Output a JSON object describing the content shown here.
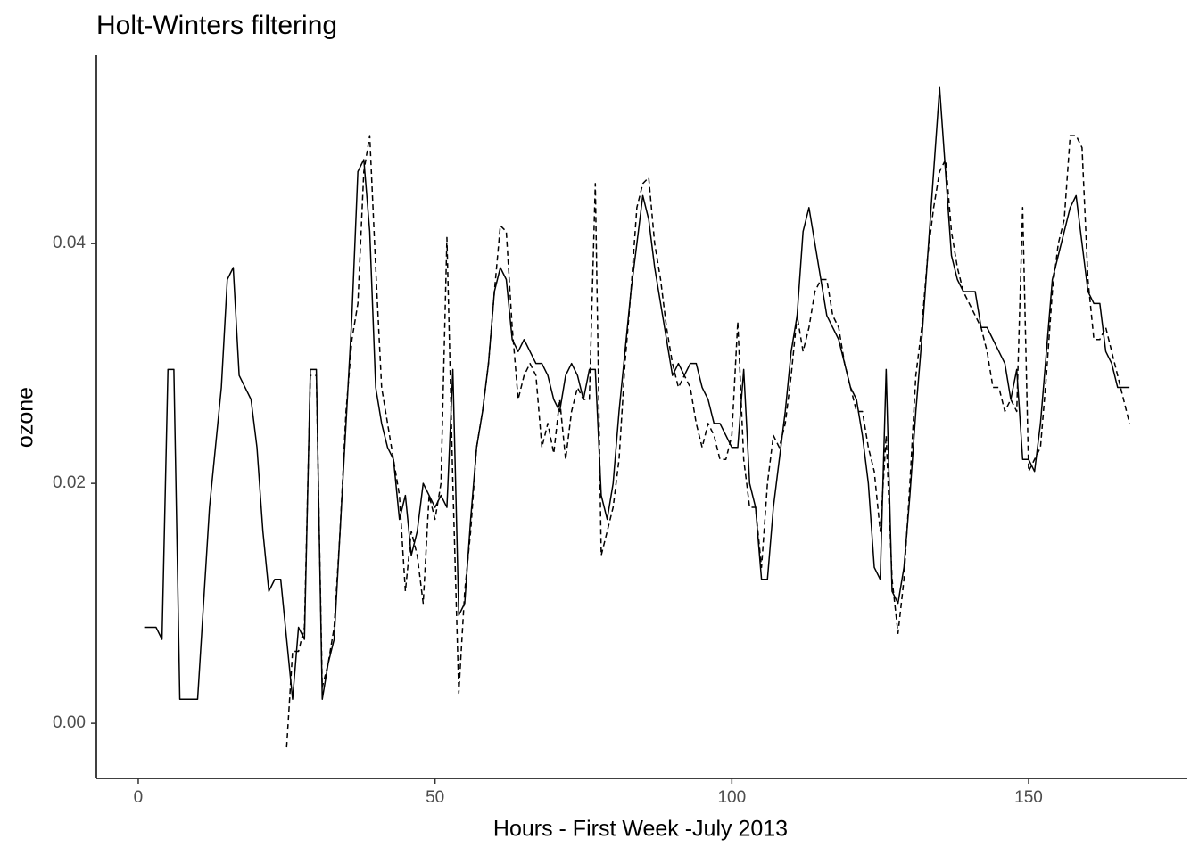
{
  "chart_data": {
    "type": "line",
    "title": "Holt-Winters filtering",
    "x_label": "Hours - First Week -July 2013",
    "y_label": "ozone",
    "x": [
      1,
      2,
      3,
      4,
      5,
      6,
      7,
      8,
      9,
      10,
      11,
      12,
      13,
      14,
      15,
      16,
      17,
      18,
      19,
      20,
      21,
      22,
      23,
      24,
      25,
      26,
      27,
      28,
      29,
      30,
      31,
      32,
      33,
      34,
      35,
      36,
      37,
      38,
      39,
      40,
      41,
      42,
      43,
      44,
      45,
      46,
      47,
      48,
      49,
      50,
      51,
      52,
      53,
      54,
      55,
      56,
      57,
      58,
      59,
      60,
      61,
      62,
      63,
      64,
      65,
      66,
      67,
      68,
      69,
      70,
      71,
      72,
      73,
      74,
      75,
      76,
      77,
      78,
      79,
      80,
      81,
      82,
      83,
      84,
      85,
      86,
      87,
      88,
      89,
      90,
      91,
      92,
      93,
      94,
      95,
      96,
      97,
      98,
      99,
      100,
      101,
      102,
      103,
      104,
      105,
      106,
      107,
      108,
      109,
      110,
      111,
      112,
      113,
      114,
      115,
      116,
      117,
      118,
      119,
      120,
      121,
      122,
      123,
      124,
      125,
      126,
      127,
      128,
      129,
      130,
      131,
      132,
      133,
      134,
      135,
      136,
      137,
      138,
      139,
      140,
      141,
      142,
      143,
      144,
      145,
      146,
      147,
      148,
      149,
      150,
      151,
      152,
      153,
      154,
      155,
      156,
      157,
      158,
      159,
      160,
      161,
      162,
      163,
      164,
      165,
      166,
      167
    ],
    "series": [
      {
        "color": "#000000",
        "linestyle": "solid",
        "values": [
          0.008,
          0.008,
          0.008,
          0.007,
          0.0295,
          0.0295,
          0.002,
          0.002,
          0.002,
          0.002,
          0.01,
          0.018,
          0.023,
          0.028,
          0.037,
          0.038,
          0.029,
          0.028,
          0.027,
          0.023,
          0.016,
          0.011,
          0.012,
          0.012,
          0.007,
          0.002,
          0.008,
          0.007,
          0.0295,
          0.0295,
          0.002,
          0.005,
          0.007,
          0.016,
          0.025,
          0.034,
          0.046,
          0.047,
          0.041,
          0.028,
          0.025,
          0.023,
          0.022,
          0.017,
          0.019,
          0.014,
          0.016,
          0.02,
          0.019,
          0.018,
          0.019,
          0.018,
          0.0295,
          0.009,
          0.01,
          0.017,
          0.023,
          0.026,
          0.03,
          0.036,
          0.038,
          0.037,
          0.032,
          0.031,
          0.032,
          0.031,
          0.03,
          0.03,
          0.029,
          0.027,
          0.026,
          0.029,
          0.03,
          0.029,
          0.027,
          0.0295,
          0.0295,
          0.019,
          0.017,
          0.02,
          0.026,
          0.031,
          0.036,
          0.04,
          0.044,
          0.042,
          0.038,
          0.035,
          0.032,
          0.029,
          0.03,
          0.029,
          0.03,
          0.03,
          0.028,
          0.027,
          0.025,
          0.025,
          0.024,
          0.023,
          0.023,
          0.0295,
          0.02,
          0.018,
          0.012,
          0.012,
          0.018,
          0.022,
          0.026,
          0.031,
          0.034,
          0.041,
          0.043,
          0.04,
          0.037,
          0.034,
          0.033,
          0.032,
          0.03,
          0.028,
          0.027,
          0.024,
          0.02,
          0.013,
          0.012,
          0.0295,
          0.011,
          0.01,
          0.013,
          0.019,
          0.026,
          0.032,
          0.039,
          0.046,
          0.053,
          0.046,
          0.039,
          0.037,
          0.036,
          0.036,
          0.036,
          0.033,
          0.033,
          0.032,
          0.031,
          0.03,
          0.027,
          0.0295,
          0.022,
          0.022,
          0.021,
          0.025,
          0.031,
          0.037,
          0.039,
          0.041,
          0.043,
          0.044,
          0.04,
          0.036,
          0.035,
          0.035,
          0.031,
          0.03,
          0.028,
          0.028,
          0.028
        ]
      },
      {
        "color": "#000000",
        "linestyle": "dashed",
        "values": [
          null,
          null,
          null,
          null,
          null,
          null,
          null,
          null,
          null,
          null,
          null,
          null,
          null,
          null,
          null,
          null,
          null,
          null,
          null,
          null,
          null,
          null,
          null,
          null,
          -0.002,
          0.006,
          0.006,
          0.008,
          0.029,
          0.029,
          0.003,
          0.005,
          0.008,
          0.016,
          0.026,
          0.032,
          0.035,
          0.046,
          0.049,
          0.038,
          0.028,
          0.025,
          0.022,
          0.019,
          0.011,
          0.016,
          0.014,
          0.01,
          0.019,
          0.017,
          0.02,
          0.0405,
          0.02,
          0.0025,
          0.011,
          0.016,
          0.023,
          0.026,
          0.03,
          0.036,
          0.0415,
          0.041,
          0.033,
          0.027,
          0.029,
          0.03,
          0.029,
          0.023,
          0.025,
          0.0225,
          0.027,
          0.022,
          0.026,
          0.028,
          0.027,
          0.027,
          0.045,
          0.014,
          0.016,
          0.018,
          0.022,
          0.03,
          0.036,
          0.043,
          0.045,
          0.0455,
          0.04,
          0.037,
          0.033,
          0.03,
          0.028,
          0.029,
          0.028,
          0.025,
          0.023,
          0.025,
          0.024,
          0.022,
          0.022,
          0.024,
          0.0335,
          0.022,
          0.018,
          0.018,
          0.013,
          0.02,
          0.024,
          0.023,
          0.025,
          0.029,
          0.034,
          0.031,
          0.033,
          0.036,
          0.037,
          0.037,
          0.034,
          0.033,
          0.03,
          0.028,
          0.026,
          0.026,
          0.023,
          0.021,
          0.016,
          0.024,
          0.012,
          0.0075,
          0.012,
          0.02,
          0.029,
          0.033,
          0.039,
          0.043,
          0.046,
          0.047,
          0.041,
          0.038,
          0.036,
          0.035,
          0.034,
          0.033,
          0.031,
          0.028,
          0.028,
          0.026,
          0.027,
          0.026,
          0.043,
          0.021,
          0.022,
          0.023,
          0.029,
          0.036,
          0.04,
          0.042,
          0.049,
          0.049,
          0.048,
          0.037,
          0.032,
          0.032,
          0.033,
          0.031,
          0.029,
          0.027,
          0.025
        ]
      }
    ],
    "xlim": [
      -7.06,
      176.6
    ],
    "xticks": [
      0,
      50,
      100,
      150
    ],
    "ylim": [
      -0.0046,
      0.0557
    ],
    "yticks": [
      {
        "value": 0,
        "label": "0.00"
      },
      {
        "value": 0.02,
        "label": "0.02"
      },
      {
        "value": 0.04,
        "label": "0.04"
      }
    ],
    "grid": false
  }
}
